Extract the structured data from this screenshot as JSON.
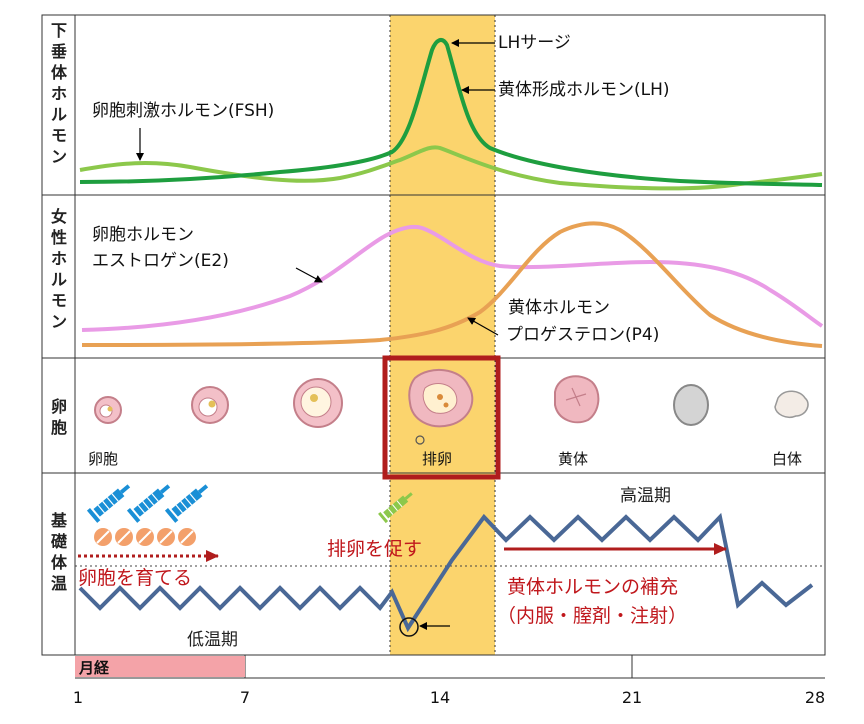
{
  "rows": {
    "pituitary": "下垂体ホルモン",
    "sex": "女性ホルモン",
    "follicle": "卵胞",
    "bbt": "基礎体温"
  },
  "labels": {
    "lh_surge": "LHサージ",
    "lh": "黄体形成ホルモン(LH)",
    "fsh": "卵胞刺激ホルモン(FSH)",
    "e2_line1": "卵胞ホルモン",
    "e2_line2": "エストロゲン(E2)",
    "p4_line1": "黄体ホルモン",
    "p4_line2": "プロゲステロン(P4)"
  },
  "follicle_stages": {
    "follicle": "卵胞",
    "ovulation": "排卵",
    "corpus_luteum": "黄体",
    "corpus_albicans": "白体"
  },
  "bbt": {
    "high_phase": "高温期",
    "low_phase": "低温期",
    "grow_follicles": "卵胞を育てる",
    "promote_ovulation": "排卵を促す",
    "luteal_support_line1": "黄体ホルモンの補充",
    "luteal_support_line2": "（内服・膣剤・注射）"
  },
  "timeline": {
    "menses": "月経",
    "ticks": [
      "1",
      "7",
      "14",
      "21",
      "28"
    ]
  },
  "colors": {
    "lh": "#1e9e3f",
    "fsh": "#8cc84b",
    "e2": "#e99be6",
    "p4": "#e8a154",
    "bbt": "#4a6896",
    "highlight": "#fbd46d",
    "ovulation_box": "#b01d1d",
    "menses_bar": "#f4a3a8",
    "red_text": "#c0171c",
    "syringe": "#1a8fd6",
    "pill": "#f3a06b"
  },
  "icons": {
    "syringe": "syringe-icon",
    "pill": "pill-icon",
    "arrow": "arrow-icon"
  }
}
